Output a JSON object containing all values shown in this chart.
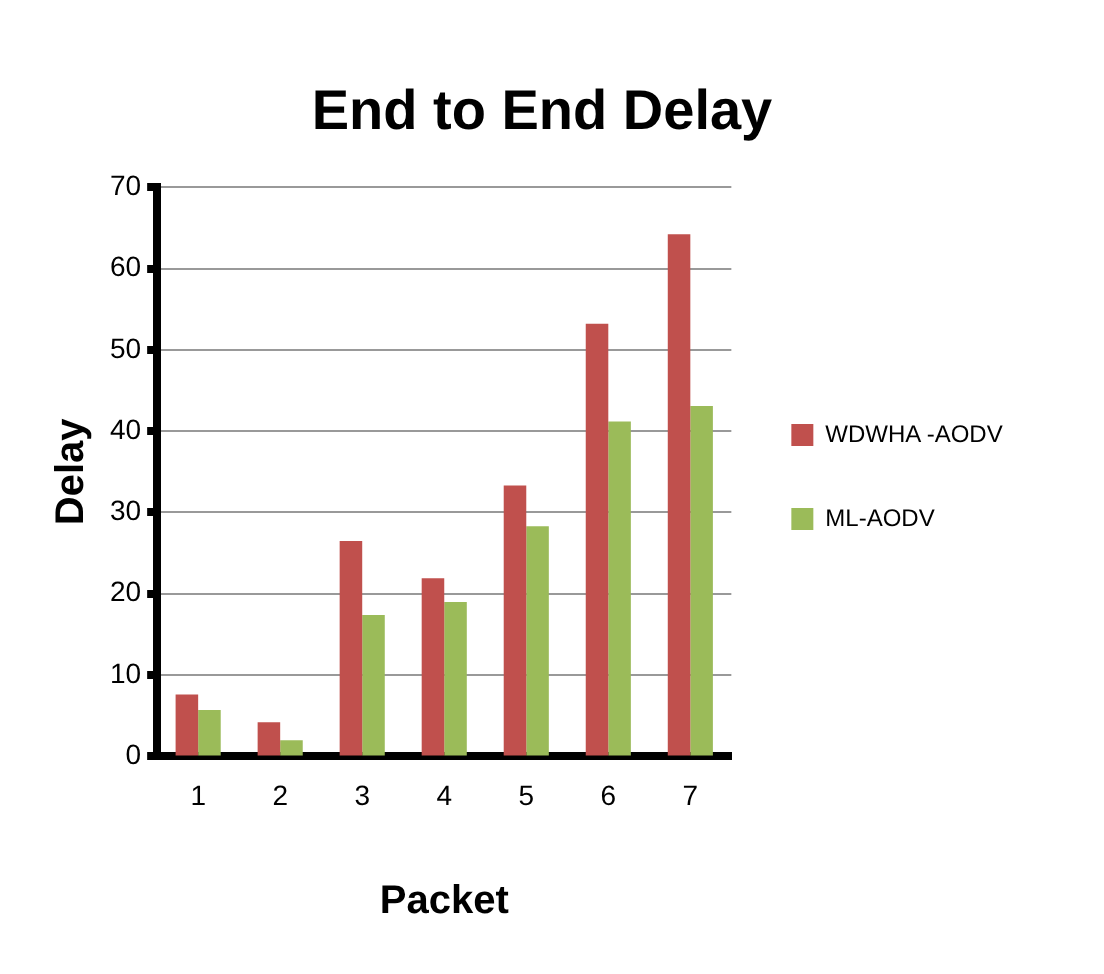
{
  "chart_data": {
    "type": "bar",
    "title": "End to End Delay",
    "xlabel": "Packet",
    "ylabel": "Delay",
    "categories": [
      "1",
      "2",
      "3",
      "4",
      "5",
      "6",
      "7"
    ],
    "series": [
      {
        "name": "WDWHA -AODV",
        "color": "#c0504d",
        "values": [
          7.6,
          4.2,
          26.5,
          21.9,
          33.3,
          53.2,
          64.2
        ]
      },
      {
        "name": "ML-AODV",
        "color": "#9bbb59",
        "values": [
          5.7,
          2.0,
          17.4,
          19.0,
          28.3,
          41.2,
          43.1
        ]
      }
    ],
    "ylim": [
      0,
      70
    ],
    "yticks": [
      0,
      10,
      20,
      30,
      40,
      50,
      60,
      70
    ],
    "grid": "y",
    "legend": "right"
  }
}
